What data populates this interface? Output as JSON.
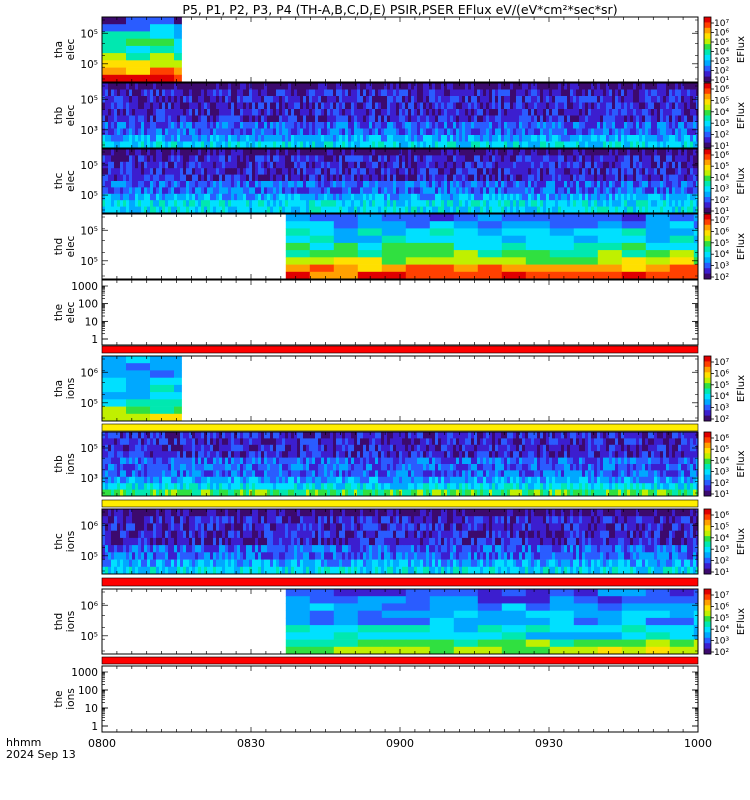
{
  "title": "P5, P1, P2, P3, P4 (TH-A,B,C,D,E) PSIR,PSER EFlux eV/(eV*cm²*sec*sr)",
  "time_axis": {
    "unit_label": "hhmm",
    "date_label": "2024 Sep 13",
    "ticks": [
      "0800",
      "0830",
      "0900",
      "0930",
      "1000"
    ]
  },
  "chart_data": {
    "type": "heatmap",
    "title": "P5, P1, P2, P3, P4 (TH-A,B,C,D,E) PSIR,PSER EFlux eV/(eV*cm²*sec*sr)",
    "x_range_minutes_after_0800": [
      0,
      120
    ],
    "x_ticks": [
      "0800",
      "0830",
      "0900",
      "0930",
      "1000"
    ],
    "colorscale": [
      "#3c0a6e",
      "#3c1ecf",
      "#2a5cff",
      "#00a8ff",
      "#00e0ff",
      "#00e8b0",
      "#30e040",
      "#c0f000",
      "#ffe000",
      "#ffa000",
      "#ff4000",
      "#e00000"
    ],
    "panels": [
      {
        "id": "tha_elec",
        "label": [
          "tha",
          "elec"
        ],
        "kind": "spectrogram",
        "y_ticks": [
          "10⁵",
          "10⁵"
        ],
        "data_extent": [
          0,
          16
        ],
        "cbar_ticks": [
          "10⁷",
          "10⁶",
          "10⁵",
          "10⁴",
          "10³",
          "10²",
          "10¹"
        ],
        "cbar_label": "EFlux",
        "profile": [
          1,
          3,
          4,
          5,
          5,
          6,
          7,
          9,
          11
        ],
        "variability": 0.5
      },
      {
        "id": "thb_elec",
        "label": [
          "thb",
          "elec"
        ],
        "kind": "spectrogram",
        "y_ticks": [
          "10⁵",
          "10³"
        ],
        "data_extent": [
          0,
          120
        ],
        "cbar_ticks": [
          "10⁶",
          "10⁵",
          "10⁴",
          "10³",
          "10²",
          "10¹"
        ],
        "cbar_label": "EFlux",
        "profile": [
          0,
          1,
          1,
          1,
          1,
          1,
          2,
          2,
          3,
          4
        ],
        "variability": 0.6
      },
      {
        "id": "thc_elec",
        "label": [
          "thc",
          "elec"
        ],
        "kind": "spectrogram",
        "y_ticks": [
          "10⁵",
          "10⁵"
        ],
        "data_extent": [
          0,
          120
        ],
        "cbar_ticks": [
          "10⁶",
          "10⁵",
          "10⁴",
          "10³",
          "10²",
          "10¹"
        ],
        "cbar_label": "EFlux",
        "profile": [
          0,
          1,
          1,
          1,
          1,
          2,
          2,
          3,
          4,
          4
        ],
        "variability": 0.6
      },
      {
        "id": "thd_elec",
        "label": [
          "thd",
          "elec"
        ],
        "kind": "spectrogram",
        "y_ticks": [
          "10⁵",
          "10⁵"
        ],
        "data_extent": [
          37,
          120
        ],
        "cbar_ticks": [
          "10⁷",
          "10⁶",
          "10⁵",
          "10⁴",
          "10³",
          "10²"
        ],
        "cbar_label": "EFlux",
        "profile": [
          2,
          3,
          4,
          4,
          5,
          6,
          7,
          9,
          10
        ],
        "variability": 0.5
      },
      {
        "id": "the_elec",
        "label": [
          "the",
          "elec"
        ],
        "kind": "empty",
        "y_ticks": [
          "1000",
          "100",
          "10",
          "1"
        ]
      },
      {
        "id": "tha_ions",
        "label": [
          "tha",
          "ions"
        ],
        "kind": "spectrogram",
        "y_ticks": [
          "10⁶",
          "10⁵"
        ],
        "data_extent": [
          0,
          16
        ],
        "cbar_ticks": [
          "10⁷",
          "10⁶",
          "10⁵",
          "10⁴",
          "10³",
          "10²"
        ],
        "cbar_label": "EFlux",
        "profile": [
          3,
          3,
          3,
          4,
          4,
          4,
          5,
          6,
          7
        ],
        "variability": 0.4
      },
      {
        "id": "thb_ions",
        "label": [
          "thb",
          "ions"
        ],
        "kind": "spectrogram",
        "y_ticks": [
          "10⁵",
          "10³"
        ],
        "data_extent": [
          0,
          120
        ],
        "cbar_ticks": [
          "10⁶",
          "10⁵",
          "10⁴",
          "10³",
          "10²",
          "10¹"
        ],
        "cbar_label": "EFlux",
        "profile": [
          1,
          1,
          1,
          1,
          2,
          2,
          2,
          3,
          4,
          6
        ],
        "variability": 0.6
      },
      {
        "id": "thc_ions",
        "label": [
          "thc",
          "ions"
        ],
        "kind": "spectrogram",
        "y_ticks": [
          "10⁶",
          "10⁵"
        ],
        "data_extent": [
          0,
          120
        ],
        "cbar_ticks": [
          "10⁶",
          "10⁵",
          "10⁴",
          "10³",
          "10²",
          "10¹"
        ],
        "cbar_label": "EFlux",
        "profile": [
          0,
          1,
          1,
          1,
          1,
          2,
          2,
          3,
          4
        ],
        "variability": 0.6
      },
      {
        "id": "thd_ions",
        "label": [
          "thd",
          "ions"
        ],
        "kind": "spectrogram",
        "y_ticks": [
          "10⁶",
          "10⁵"
        ],
        "data_extent": [
          37,
          120
        ],
        "cbar_ticks": [
          "10⁷",
          "10⁶",
          "10⁵",
          "10⁴",
          "10³",
          "10²"
        ],
        "cbar_label": "EFlux",
        "profile": [
          2,
          2,
          3,
          3,
          3,
          4,
          4,
          6,
          7
        ],
        "variability": 0.5
      },
      {
        "id": "the_ions",
        "label": [
          "the",
          "ions"
        ],
        "kind": "empty",
        "y_ticks": [
          "1000",
          "100",
          "10",
          "1"
        ]
      }
    ],
    "separator_bars": [
      {
        "after_panel": "the_elec",
        "color": "#ff0000"
      },
      {
        "after_panel": "tha_ions",
        "color": "#ffee00"
      },
      {
        "after_panel": "thb_ions",
        "color": "#ffee00"
      },
      {
        "after_panel": "thc_ions",
        "color": "#ff0000"
      },
      {
        "after_panel": "thd_ions",
        "color": "#ff0000"
      }
    ]
  }
}
